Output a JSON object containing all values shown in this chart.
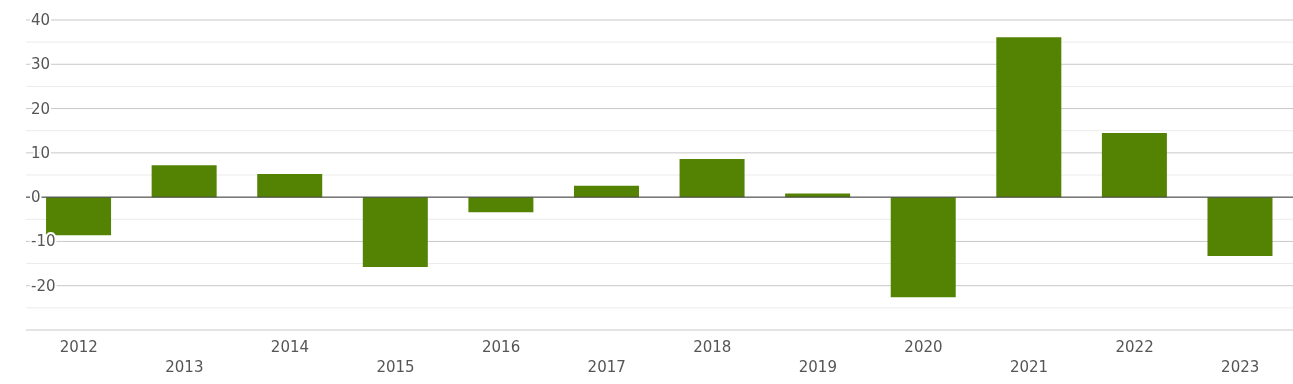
{
  "chart_data": {
    "type": "bar",
    "categories": [
      "2012",
      "2013",
      "2014",
      "2015",
      "2016",
      "2017",
      "2018",
      "2019",
      "2020",
      "2021",
      "2022",
      "2023"
    ],
    "values": [
      -8.6,
      7.2,
      5.2,
      -15.8,
      -3.4,
      2.6,
      8.6,
      0.8,
      -22.6,
      36.1,
      14.5,
      -13.3
    ],
    "color": "#548203",
    "ylim": [
      -30,
      40
    ],
    "yticks": [
      {
        "value": -25,
        "label": null
      },
      -20,
      {
        "value": -15,
        "label": null
      },
      -10,
      {
        "value": -5,
        "label": null
      },
      0,
      {
        "value": 5,
        "label": null
      },
      10,
      {
        "value": 15,
        "label": null
      },
      20,
      {
        "value": 25,
        "label": null
      },
      30,
      {
        "value": 35,
        "label": null
      },
      40
    ],
    "ref_lines": [
      {
        "axis": "y",
        "value": 0,
        "color": "#444444"
      }
    ],
    "grid": "y"
  }
}
